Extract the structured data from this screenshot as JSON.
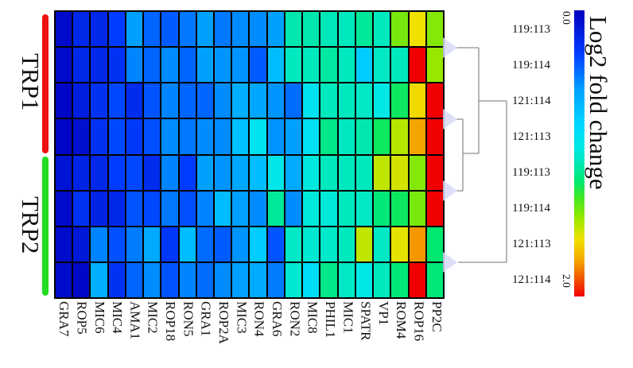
{
  "chart_data": {
    "type": "heatmap",
    "columns": [
      "GRA7",
      "ROP5",
      "MIC6",
      "MIC4",
      "AMA1",
      "MIC2",
      "ROP18",
      "RON5",
      "GRA1",
      "ROP2A",
      "MIC3",
      "RON4",
      "GRA6",
      "RON2",
      "MIC8",
      "PHIL1",
      "MIC1",
      "SPATR",
      "VP1",
      "ROM4",
      "ROP16",
      "PP2C"
    ],
    "rows": [
      "119:113",
      "119:114",
      "121:114",
      "121:113",
      "119:113",
      "119:114",
      "121:113",
      "121:114"
    ],
    "row_groups": [
      {
        "label": "TRP1",
        "color": "#ee1111",
        "rows": [
          0,
          3
        ]
      },
      {
        "label": "TRP2",
        "color": "#22dd22",
        "rows": [
          4,
          7
        ]
      }
    ],
    "values": [
      [
        0.05,
        0.2,
        0.2,
        0.3,
        0.55,
        0.4,
        0.38,
        0.45,
        0.55,
        0.45,
        0.5,
        0.5,
        0.55,
        1.08,
        1.08,
        1.06,
        1.05,
        1.12,
        1.05,
        1.4,
        1.6,
        1.42
      ],
      [
        0.05,
        0.2,
        0.2,
        0.25,
        0.48,
        0.4,
        0.5,
        0.4,
        0.55,
        0.52,
        0.52,
        0.38,
        0.68,
        1.05,
        1.05,
        1.1,
        1.05,
        0.75,
        1.03,
        1.05,
        2.0,
        1.45
      ],
      [
        0.03,
        0.15,
        0.25,
        0.33,
        0.22,
        0.36,
        0.48,
        0.4,
        0.4,
        0.5,
        0.62,
        0.58,
        0.52,
        0.42,
        0.9,
        1.05,
        1.05,
        1.03,
        0.95,
        1.22,
        1.62,
        2.0
      ],
      [
        0.03,
        0.08,
        0.25,
        0.33,
        0.28,
        0.35,
        0.5,
        0.45,
        0.5,
        0.5,
        0.7,
        0.9,
        0.52,
        0.55,
        0.88,
        1.15,
        1.04,
        1.08,
        1.22,
        1.5,
        1.75,
        2.0
      ],
      [
        0.1,
        0.18,
        0.2,
        0.3,
        0.33,
        0.22,
        0.48,
        0.3,
        0.55,
        0.52,
        0.58,
        0.68,
        0.93,
        0.6,
        0.97,
        1.05,
        1.05,
        1.05,
        1.52,
        1.55,
        1.42,
        2.0
      ],
      [
        0.05,
        0.25,
        0.18,
        0.2,
        0.36,
        0.33,
        0.45,
        0.35,
        0.48,
        0.68,
        0.55,
        0.5,
        1.12,
        0.5,
        0.98,
        0.98,
        1.05,
        1.03,
        1.18,
        1.22,
        1.4,
        2.0
      ],
      [
        0.06,
        0.12,
        0.48,
        0.35,
        0.46,
        0.6,
        0.28,
        0.68,
        0.42,
        0.38,
        0.52,
        0.75,
        0.36,
        1.03,
        1.0,
        1.02,
        1.05,
        1.52,
        1.03,
        1.58,
        1.77,
        1.2
      ],
      [
        0.06,
        0.04,
        0.62,
        0.25,
        0.4,
        0.5,
        0.36,
        0.48,
        0.42,
        0.5,
        0.55,
        0.6,
        0.46,
        1.0,
        0.85,
        1.15,
        1.03,
        0.95,
        1.05,
        1.18,
        2.0,
        1.18
      ]
    ],
    "colormap": [
      [
        0.0,
        "#0000be"
      ],
      [
        0.3,
        "#003cff"
      ],
      [
        0.55,
        "#00a0ff"
      ],
      [
        0.8,
        "#00d7ff"
      ],
      [
        0.95,
        "#00e8e6"
      ],
      [
        1.05,
        "#00e8be"
      ],
      [
        1.2,
        "#00e86e"
      ],
      [
        1.3,
        "#3ce828"
      ],
      [
        1.45,
        "#96e800"
      ],
      [
        1.6,
        "#f0e100"
      ],
      [
        1.75,
        "#f5a500"
      ],
      [
        1.9,
        "#f24600"
      ],
      [
        2.0,
        "#f00000"
      ]
    ],
    "colorbar": {
      "label": "Log2 fold change",
      "min_label": "0.0",
      "max_label": "2.0",
      "min": 0.0,
      "max": 2.0
    },
    "dendrogram": {
      "line_color": "#8f8f8f",
      "node_color": "#d7d9f6",
      "triangles_y": [
        60,
        150,
        240,
        330
      ],
      "segments": [
        [
          574,
          60,
          602,
          60
        ],
        [
          602,
          60,
          602,
          193
        ],
        [
          574,
          150,
          582,
          150
        ],
        [
          582,
          150,
          582,
          240
        ],
        [
          574,
          240,
          582,
          240
        ],
        [
          582,
          193,
          602,
          193
        ],
        [
          602,
          127,
          637,
          127
        ],
        [
          576,
          330,
          637,
          330
        ],
        [
          637,
          127,
          637,
          330
        ]
      ]
    },
    "grid": true,
    "legend_position": "right"
  }
}
